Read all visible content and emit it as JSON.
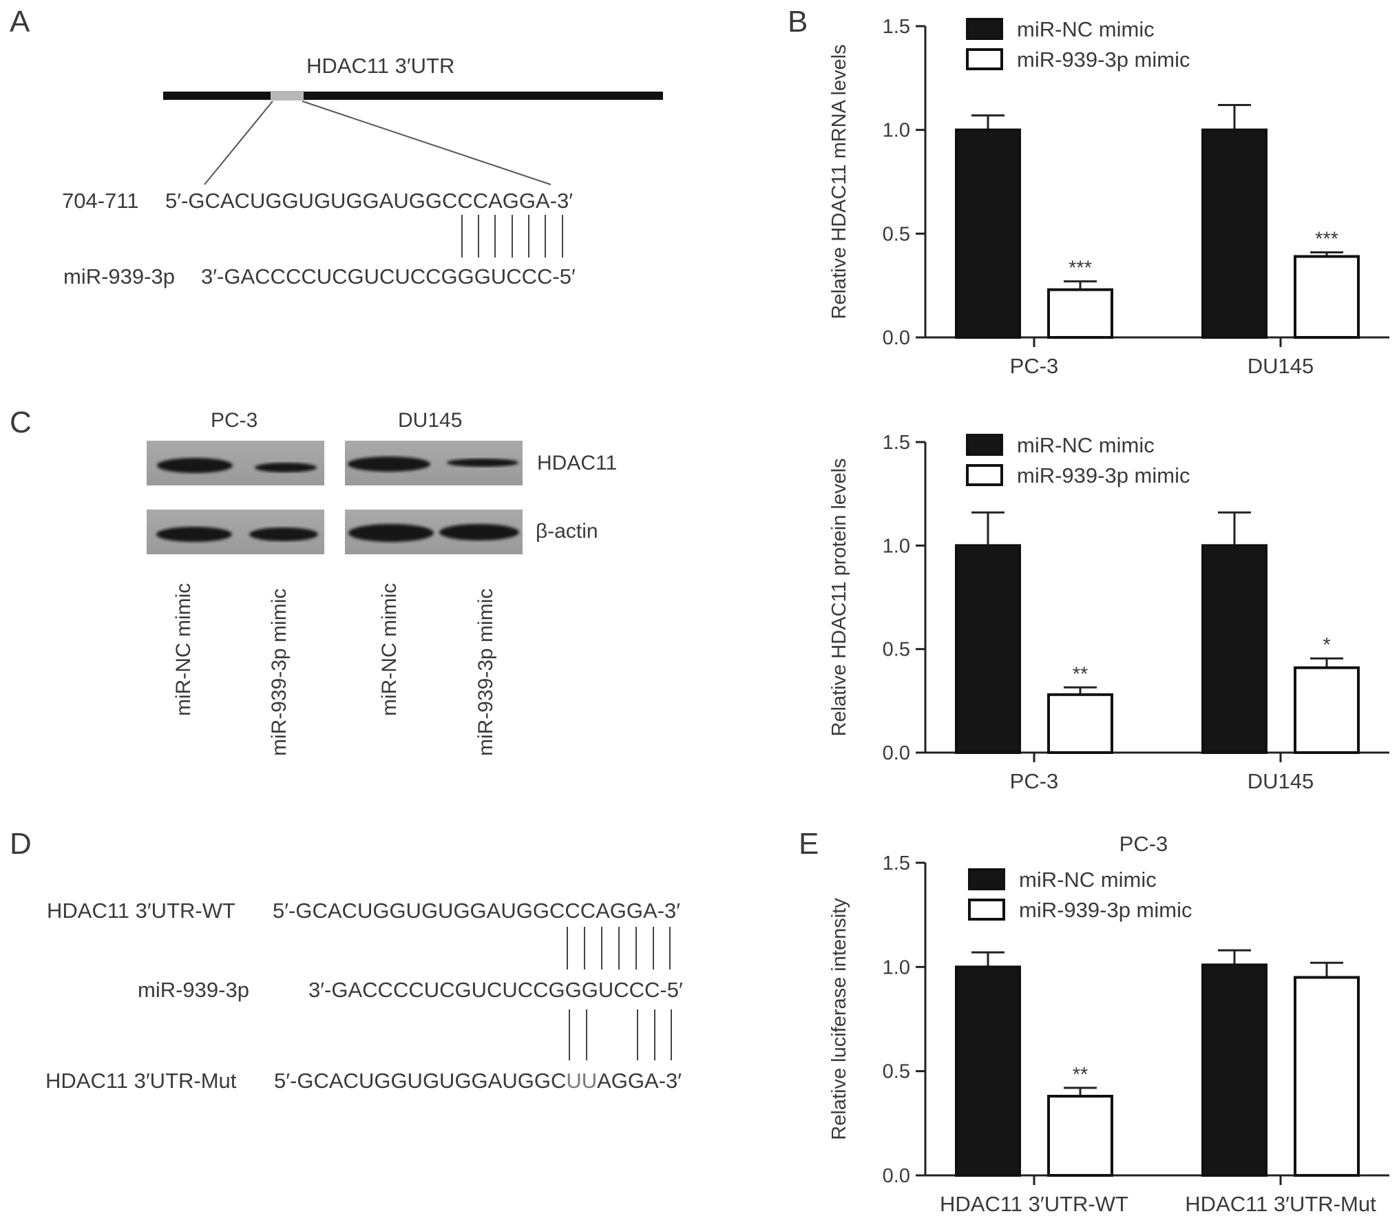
{
  "panels": {
    "A": "A",
    "B": "B",
    "C": "C",
    "D": "D",
    "E": "E"
  },
  "panelA": {
    "utr_label": "HDAC11 3′UTR",
    "site_label": "704-711",
    "target_seq": "5′-GCACUGGUGUGGAUGGCCCAGGA-3′",
    "mirna_label": "miR-939-3p",
    "mirna_seq": "3′-GACCCCUCGUCUCCGGGUCCC-5′"
  },
  "panelC": {
    "cell_lines": [
      "PC-3",
      "DU145"
    ],
    "proteins": [
      "HDAC11",
      "β-actin"
    ],
    "lanes": [
      "miR-NC mimic",
      "miR-939-3p mimic",
      "miR-NC mimic",
      "miR-939-3p mimic"
    ]
  },
  "panelD": {
    "wt_label": "HDAC11 3′UTR-WT",
    "wt_seq": "5′-GCACUGGUGUGGAUGGCCCAGGA-3′",
    "mirna_label": "miR-939-3p",
    "mirna_seq": "3′-GACCCCUCGUCUCCGGGUCCC-5′",
    "mut_label": "HDAC11 3′UTR-Mut",
    "mut_seq_pre": "5′-GCACUGGUGUGGAUGGC",
    "mut_seq_mut": "UU",
    "mut_seq_post": "AGGA-3′"
  },
  "colors": {
    "nc": "#151515",
    "mimic": "#ffffff",
    "axis": "#222222"
  },
  "chart_data": [
    {
      "id": "B-mRNA",
      "type": "bar",
      "title": "",
      "ylabel": "Relative HDAC11 mRNA levels",
      "xlabel": "",
      "ylim": [
        0,
        1.5
      ],
      "yticks": [
        "0.0",
        "0.5",
        "1.0",
        "1.5"
      ],
      "categories": [
        "PC-3",
        "DU145"
      ],
      "legend": "top-left",
      "series": [
        {
          "name": "miR-NC mimic",
          "values": [
            1.0,
            1.0
          ],
          "errors": [
            0.07,
            0.12
          ]
        },
        {
          "name": "miR-939-3p mimic",
          "values": [
            0.23,
            0.39
          ],
          "errors": [
            0.04,
            0.02
          ]
        }
      ],
      "annotations": [
        [
          "",
          ""
        ],
        [
          "***",
          "***"
        ]
      ]
    },
    {
      "id": "B-protein",
      "type": "bar",
      "title": "",
      "ylabel": "Relative HDAC11 protein levels",
      "xlabel": "",
      "ylim": [
        0,
        1.5
      ],
      "yticks": [
        "0.0",
        "0.5",
        "1.0",
        "1.5"
      ],
      "categories": [
        "PC-3",
        "DU145"
      ],
      "legend": "top-left",
      "series": [
        {
          "name": "miR-NC mimic",
          "values": [
            1.0,
            1.0
          ],
          "errors": [
            0.16,
            0.16
          ]
        },
        {
          "name": "miR-939-3p mimic",
          "values": [
            0.28,
            0.41
          ],
          "errors": [
            0.035,
            0.045
          ]
        }
      ],
      "annotations": [
        [
          "",
          ""
        ],
        [
          "**",
          "*"
        ]
      ]
    },
    {
      "id": "E-luciferase",
      "type": "bar",
      "title": "PC-3",
      "ylabel": "Relative luciferase intensity",
      "xlabel": "",
      "ylim": [
        0,
        1.5
      ],
      "yticks": [
        "0.0",
        "0.5",
        "1.0",
        "1.5"
      ],
      "categories": [
        "HDAC11 3′UTR-WT",
        "HDAC11 3′UTR-Mut"
      ],
      "legend": "top-left",
      "series": [
        {
          "name": "miR-NC mimic",
          "values": [
            1.0,
            1.01
          ],
          "errors": [
            0.07,
            0.07
          ]
        },
        {
          "name": "miR-939-3p mimic",
          "values": [
            0.38,
            0.95
          ],
          "errors": [
            0.04,
            0.07
          ]
        }
      ],
      "annotations": [
        [
          "",
          ""
        ],
        [
          "**",
          ""
        ]
      ]
    }
  ]
}
